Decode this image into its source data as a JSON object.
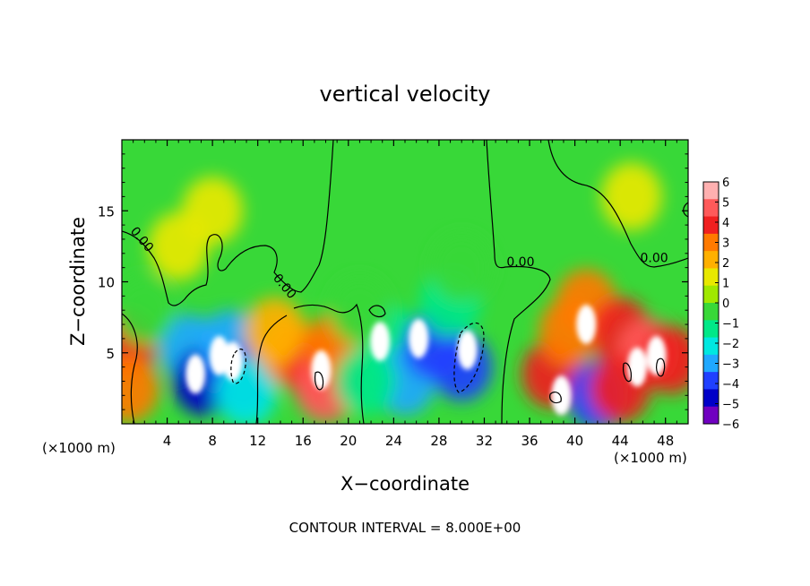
{
  "chart_data": {
    "type": "heatmap",
    "title": "vertical velocity",
    "xlabel": "X−coordinate",
    "ylabel": "Z−coordinate",
    "x_unit_left": "(×1000 m)",
    "x_unit_right": "(×1000 m)",
    "footer": "CONTOUR INTERVAL = 8.000E+00",
    "xlim": [
      0,
      50
    ],
    "ylim": [
      0,
      20
    ],
    "x_ticks": [
      4,
      8,
      12,
      16,
      20,
      24,
      28,
      32,
      36,
      40,
      44,
      48
    ],
    "y_ticks": [
      5,
      10,
      15
    ],
    "colorbar": {
      "ticks": [
        6,
        5,
        4,
        3,
        2,
        1,
        0,
        -1,
        -2,
        -3,
        -4,
        -5,
        -6
      ],
      "tick_labels": [
        "6",
        "5",
        "4",
        "3",
        "2",
        "1",
        "0",
        "−1",
        "−2",
        "−3",
        "−4",
        "−5",
        "−6"
      ],
      "colors": [
        "#ffb0b0",
        "#ff5a5a",
        "#f02020",
        "#ff7a00",
        "#ffb000",
        "#e8e800",
        "#a0e800",
        "#38d838",
        "#00e888",
        "#00e8e0",
        "#20a8ff",
        "#2040ff",
        "#0000c8",
        "#7000c0"
      ]
    },
    "contour_labels": [
      {
        "text": "0.00",
        "x": 1.5,
        "y": 12.8,
        "rot": 50
      },
      {
        "text": "0.00",
        "x": 14.1,
        "y": 9.5,
        "rot": 50
      },
      {
        "text": "0.00",
        "x": 35.2,
        "y": 11.1,
        "rot": 0
      },
      {
        "text": "0.00",
        "x": 47.0,
        "y": 11.4,
        "rot": 0
      }
    ],
    "cells": [
      {
        "x": 0.3,
        "y": 5.5,
        "v": 4.5
      },
      {
        "x": 0.6,
        "y": 2.5,
        "v": 3
      },
      {
        "x": 6.0,
        "y": 5.3,
        "v": -4
      },
      {
        "x": 7.2,
        "y": 3.0,
        "v": -6
      },
      {
        "x": 9.5,
        "y": 5.6,
        "v": -4
      },
      {
        "x": 10.5,
        "y": 3.0,
        "v": -5
      },
      {
        "x": 6.5,
        "y": 3.5,
        "v": -8
      },
      {
        "x": 9.8,
        "y": 4.4,
        "v": -8
      },
      {
        "x": 8.6,
        "y": 4.8,
        "v": -8
      },
      {
        "x": 11.0,
        "y": 2.2,
        "v": -3
      },
      {
        "x": 15.0,
        "y": 5.0,
        "v": 3.5
      },
      {
        "x": 17.0,
        "y": 4.0,
        "v": 4.5
      },
      {
        "x": 18.0,
        "y": 2.5,
        "v": 5.5
      },
      {
        "x": 19.0,
        "y": 5.5,
        "v": 3
      },
      {
        "x": 13.5,
        "y": 6.5,
        "v": 2
      },
      {
        "x": 17.6,
        "y": 3.8,
        "v": 8
      },
      {
        "x": 23.5,
        "y": 6.0,
        "v": -2
      },
      {
        "x": 25.0,
        "y": 3.0,
        "v": -4
      },
      {
        "x": 27.5,
        "y": 5.5,
        "v": -5
      },
      {
        "x": 30.0,
        "y": 4.0,
        "v": -5
      },
      {
        "x": 29.0,
        "y": 8.5,
        "v": -2
      },
      {
        "x": 22.8,
        "y": 5.8,
        "v": -8
      },
      {
        "x": 30.5,
        "y": 5.2,
        "v": -8
      },
      {
        "x": 26.2,
        "y": 6.0,
        "v": -8
      },
      {
        "x": 21.5,
        "y": 3.0,
        "v": -2
      },
      {
        "x": 38.0,
        "y": 3.5,
        "v": 4.5
      },
      {
        "x": 39.5,
        "y": 6.5,
        "v": 3.5
      },
      {
        "x": 41.0,
        "y": 8.5,
        "v": 3
      },
      {
        "x": 44.0,
        "y": 6.5,
        "v": 4.5
      },
      {
        "x": 46.5,
        "y": 5.0,
        "v": 5
      },
      {
        "x": 48.5,
        "y": 4.5,
        "v": 4.5
      },
      {
        "x": 38.8,
        "y": 2.0,
        "v": 8
      },
      {
        "x": 41.0,
        "y": 7.0,
        "v": 8
      },
      {
        "x": 45.5,
        "y": 4.0,
        "v": 8
      },
      {
        "x": 47.2,
        "y": 4.8,
        "v": 8
      },
      {
        "x": 42.0,
        "y": 2.0,
        "v": -5
      },
      {
        "x": 44.0,
        "y": 2.5,
        "v": 4
      },
      {
        "x": 5.0,
        "y": 12.5,
        "v": 1
      },
      {
        "x": 8.0,
        "y": 15.0,
        "v": 0.8
      },
      {
        "x": 45.0,
        "y": 16.0,
        "v": 1
      },
      {
        "x": 30.0,
        "y": 11.0,
        "v": -1
      },
      {
        "x": 2.0,
        "y": 8.0,
        "v": -1
      },
      {
        "x": 21.0,
        "y": 8.0,
        "v": -1
      }
    ]
  }
}
